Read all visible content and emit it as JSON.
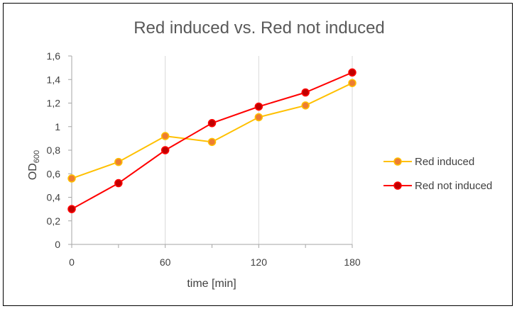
{
  "chart_data": {
    "type": "line",
    "title": "Red induced vs. Red not induced",
    "xlabel": "time [min]",
    "ylabel_main": "OD",
    "ylabel_sub": "600",
    "x": [
      0,
      30,
      60,
      90,
      120,
      150,
      180
    ],
    "xlim": [
      0,
      180
    ],
    "ylim": [
      0,
      1.6
    ],
    "x_ticks": [
      0,
      60,
      120,
      180
    ],
    "x_tick_labels": [
      "0",
      "60",
      "120",
      "180"
    ],
    "y_ticks": [
      0,
      0.2,
      0.4,
      0.6,
      0.8,
      1.0,
      1.2,
      1.4,
      1.6
    ],
    "y_tick_labels": [
      "0",
      "0,2",
      "0,4",
      "0,6",
      "0,8",
      "1",
      "1,2",
      "1,4",
      "1,6"
    ],
    "grid": "vertical",
    "legend_position": "right",
    "series": [
      {
        "name": "Red induced",
        "line_color": "#FFC000",
        "marker_fill": "#ED7D31",
        "values": [
          0.56,
          0.7,
          0.92,
          0.87,
          1.08,
          1.18,
          1.37
        ]
      },
      {
        "name": "Red not induced",
        "line_color": "#FF0000",
        "marker_fill": "#C00000",
        "values": [
          0.3,
          0.52,
          0.8,
          1.03,
          1.17,
          1.29,
          1.46
        ]
      }
    ]
  }
}
